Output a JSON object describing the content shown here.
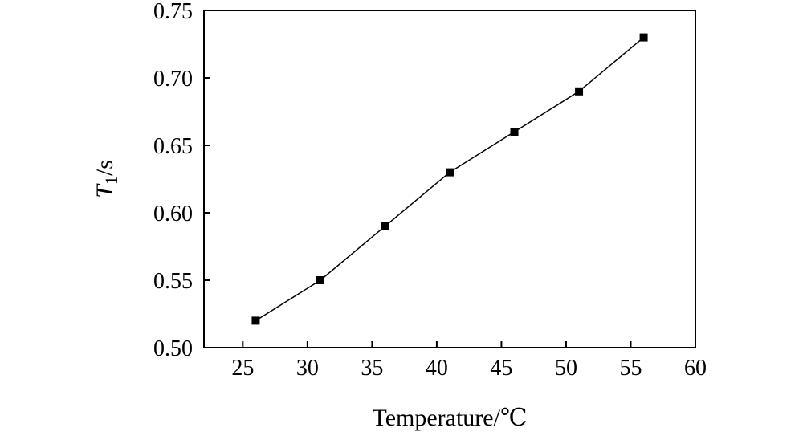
{
  "chart_data": {
    "type": "line",
    "title": "",
    "xlabel": "Temperature/℃",
    "ylabel_main": "T",
    "ylabel_sub": "1",
    "ylabel_unit": "/s",
    "xlim": [
      22,
      60
    ],
    "ylim": [
      0.5,
      0.75
    ],
    "x_ticks": [
      25,
      30,
      35,
      40,
      45,
      50,
      55,
      60
    ],
    "x_tick_labels": [
      "25",
      "30",
      "35",
      "40",
      "45",
      "50",
      "55",
      "60"
    ],
    "y_ticks": [
      0.5,
      0.55,
      0.6,
      0.65,
      0.7,
      0.75
    ],
    "y_tick_labels": [
      "0.50",
      "0.55",
      "0.60",
      "0.65",
      "0.70",
      "0.75"
    ],
    "grid": false,
    "legend": "none",
    "marker": "square",
    "color": "#000000",
    "series": [
      {
        "x": [
          26,
          31,
          36,
          41,
          46,
          51,
          56
        ],
        "y": [
          0.52,
          0.55,
          0.59,
          0.63,
          0.66,
          0.69,
          0.73
        ]
      }
    ]
  }
}
